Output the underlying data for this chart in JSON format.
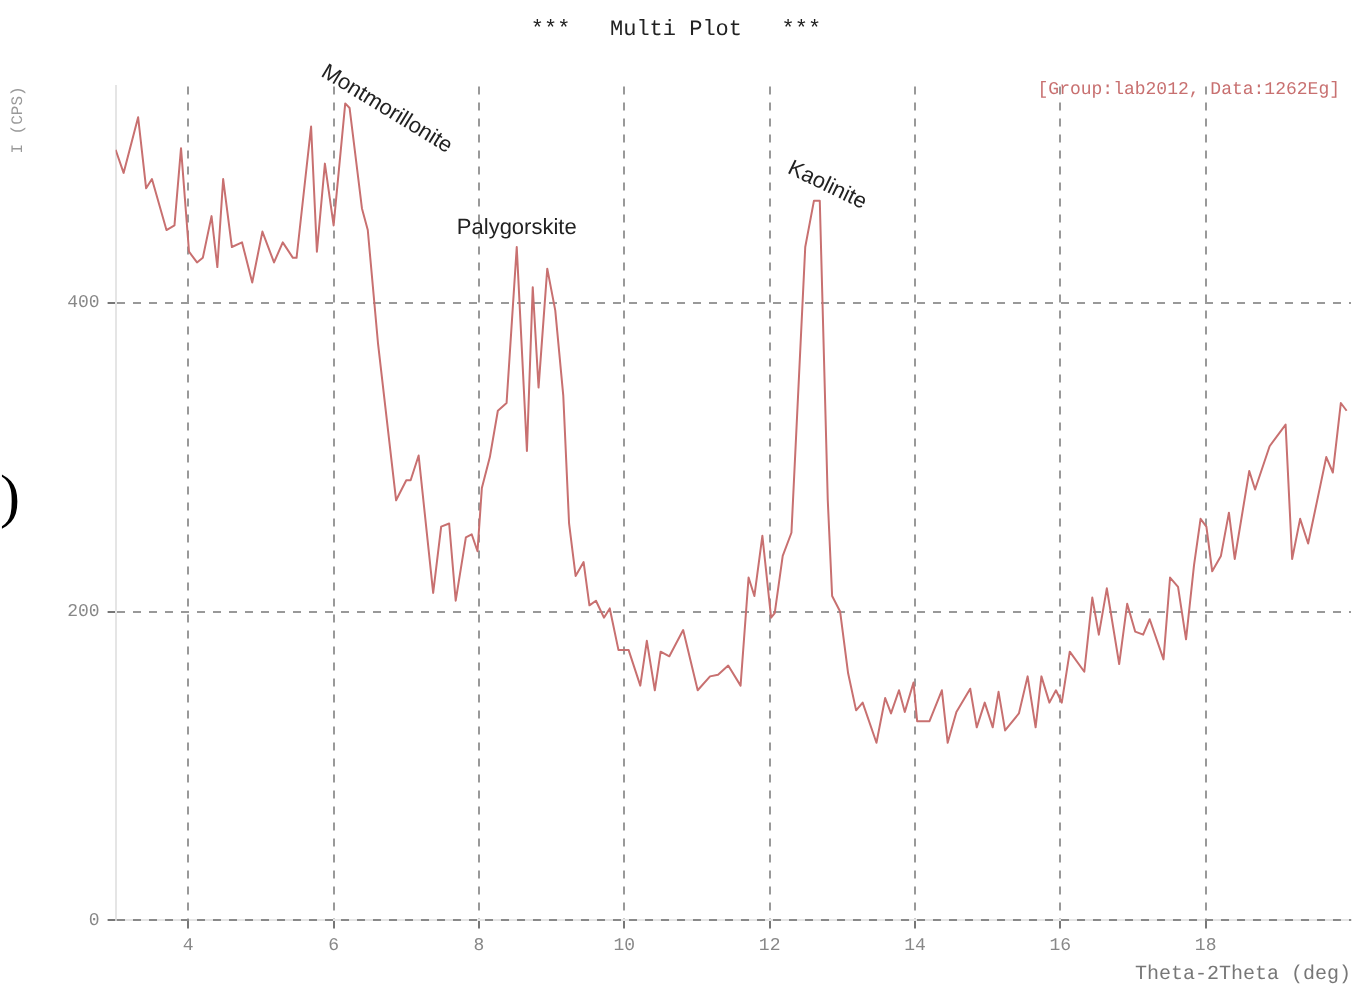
{
  "chart_data": {
    "type": "line",
    "title": "***   Multi Plot   ***",
    "xlabel": "Theta-2Theta (deg)",
    "ylabel": "I (CPS)",
    "xlim": [
      3,
      20
    ],
    "ylim": [
      0,
      540
    ],
    "xticks": [
      4,
      6,
      8,
      10,
      12,
      14,
      16,
      18
    ],
    "yticks": [
      0,
      200,
      400
    ],
    "grid": true,
    "legend": false,
    "marker": "none",
    "line_style": "solid",
    "annotations": [
      {
        "text": "Montmorillonite",
        "x": 6.2,
        "y": 527
      },
      {
        "text": "Palygorskite",
        "x": 8.52,
        "y": 436
      },
      {
        "text": "Kaolinite",
        "x": 12.65,
        "y": 466
      },
      "[Group:lab2012, Data:1262Eg]",
      ")"
    ],
    "series": [
      {
        "color": "#c87070",
        "x": [
          3.0,
          3.11,
          3.31,
          3.42,
          3.5,
          3.7,
          3.81,
          3.9,
          4.01,
          4.12,
          4.2,
          4.32,
          4.4,
          4.48,
          4.6,
          4.74,
          4.88,
          5.02,
          5.18,
          5.3,
          5.44,
          5.49,
          5.69,
          5.77,
          5.88,
          6.0,
          6.16,
          6.22,
          6.39,
          6.47,
          6.61,
          6.86,
          7.0,
          7.06,
          7.17,
          7.37,
          7.48,
          7.59,
          7.68,
          7.82,
          7.9,
          7.98,
          8.04,
          8.15,
          8.26,
          8.38,
          8.52,
          8.66,
          8.74,
          8.82,
          8.94,
          9.05,
          9.16,
          9.24,
          9.33,
          9.44,
          9.52,
          9.61,
          9.72,
          9.8,
          9.92,
          10.06,
          10.22,
          10.31,
          10.42,
          10.5,
          10.62,
          10.81,
          11.01,
          11.18,
          11.29,
          11.43,
          11.6,
          11.71,
          11.79,
          11.9,
          12.02,
          12.07,
          12.18,
          12.3,
          12.49,
          12.61,
          12.69,
          12.8,
          12.86,
          12.97,
          13.08,
          13.19,
          13.28,
          13.47,
          13.59,
          13.67,
          13.78,
          13.86,
          13.98,
          14.03,
          14.2,
          14.37,
          14.45,
          14.57,
          14.76,
          14.85,
          14.96,
          15.07,
          15.15,
          15.24,
          15.43,
          15.55,
          15.66,
          15.74,
          15.85,
          15.94,
          16.02,
          16.13,
          16.33,
          16.44,
          16.53,
          16.64,
          16.81,
          16.92,
          17.03,
          17.14,
          17.23,
          17.42,
          17.51,
          17.62,
          17.73,
          17.84,
          17.93,
          18.01,
          18.09,
          18.21,
          18.32,
          18.4,
          18.6,
          18.68,
          18.88,
          19.1,
          19.19,
          19.3,
          19.41,
          19.58,
          19.66,
          19.75,
          19.86,
          19.94
        ],
        "values": [
          499,
          484,
          520,
          474,
          480,
          447,
          450,
          500,
          433,
          426,
          429,
          456,
          423,
          480,
          436,
          439,
          413,
          446,
          426,
          439,
          429,
          429,
          514,
          433,
          490,
          450,
          529,
          526,
          461,
          447,
          374,
          272,
          285,
          285,
          301,
          212,
          255,
          257,
          207,
          248,
          250,
          239,
          280,
          300,
          330,
          335,
          436,
          304,
          410,
          345,
          422,
          395,
          340,
          257,
          223,
          232,
          204,
          207,
          196,
          202,
          175,
          175,
          152,
          181,
          149,
          174,
          171,
          188,
          149,
          158,
          159,
          165,
          152,
          222,
          210,
          249,
          196,
          199,
          236,
          251,
          436,
          466,
          466,
          272,
          210,
          200,
          160,
          136,
          141,
          115,
          144,
          134,
          149,
          135,
          154,
          129,
          129,
          149,
          115,
          135,
          150,
          125,
          141,
          125,
          148,
          123,
          134,
          158,
          125,
          158,
          141,
          149,
          141,
          174,
          161,
          209,
          185,
          215,
          166,
          205,
          187,
          185,
          195,
          169,
          222,
          216,
          182,
          230,
          260,
          255,
          226,
          236,
          264,
          234,
          291,
          279,
          307,
          321,
          234,
          260,
          244,
          282,
          300,
          290,
          335,
          330
        ]
      }
    ]
  }
}
